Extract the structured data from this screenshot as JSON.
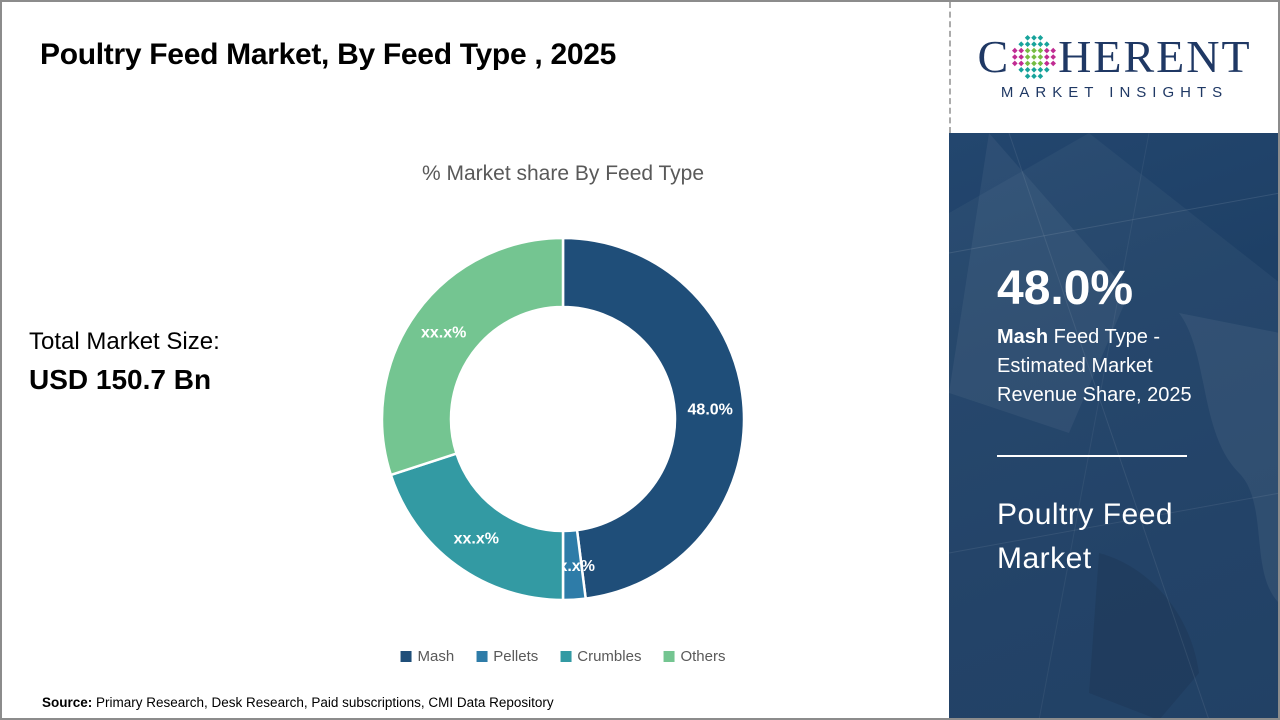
{
  "header": {
    "title": "Poultry Feed Market, By Feed Type , 2025"
  },
  "logo": {
    "name": "coherent-market-insights-logo",
    "word_start": "C",
    "word_end": "HERENT",
    "subtitle": "MARKET INSIGHTS",
    "navy": "#1F3864",
    "dot_colors": {
      "teal": "#18A39B",
      "green": "#76BC43",
      "magenta": "#C02C92"
    }
  },
  "left_panel": {
    "total_label": "Total Market Size:",
    "total_value": "USD 150.7 Bn"
  },
  "chart_data": {
    "type": "pie",
    "donut": true,
    "inner_ratio": 0.62,
    "title": "% Market share By Feed Type",
    "categories": [
      "Mash",
      "Pellets",
      "Crumbles",
      "Others"
    ],
    "values": [
      48.0,
      2.0,
      20.0,
      30.0
    ],
    "value_labels": [
      "48.0%",
      "xx.x%",
      "xx.x%",
      "xx.x%"
    ],
    "colors": [
      "#1F4E79",
      "#2E7CA8",
      "#339AA3",
      "#74C591"
    ],
    "start_angle_deg": 0,
    "direction": "clockwise",
    "legend_position": "bottom"
  },
  "sidebar": {
    "stat_value": "48.0%",
    "stat_bold": "Mash",
    "stat_rest": " Feed Type - Estimated Market Revenue Share, 2025",
    "product_title": "Poultry Feed Market"
  },
  "footer": {
    "source_label": "Source:",
    "source_text": " Primary Research, Desk Research, Paid subscriptions, CMI Data Repository"
  }
}
